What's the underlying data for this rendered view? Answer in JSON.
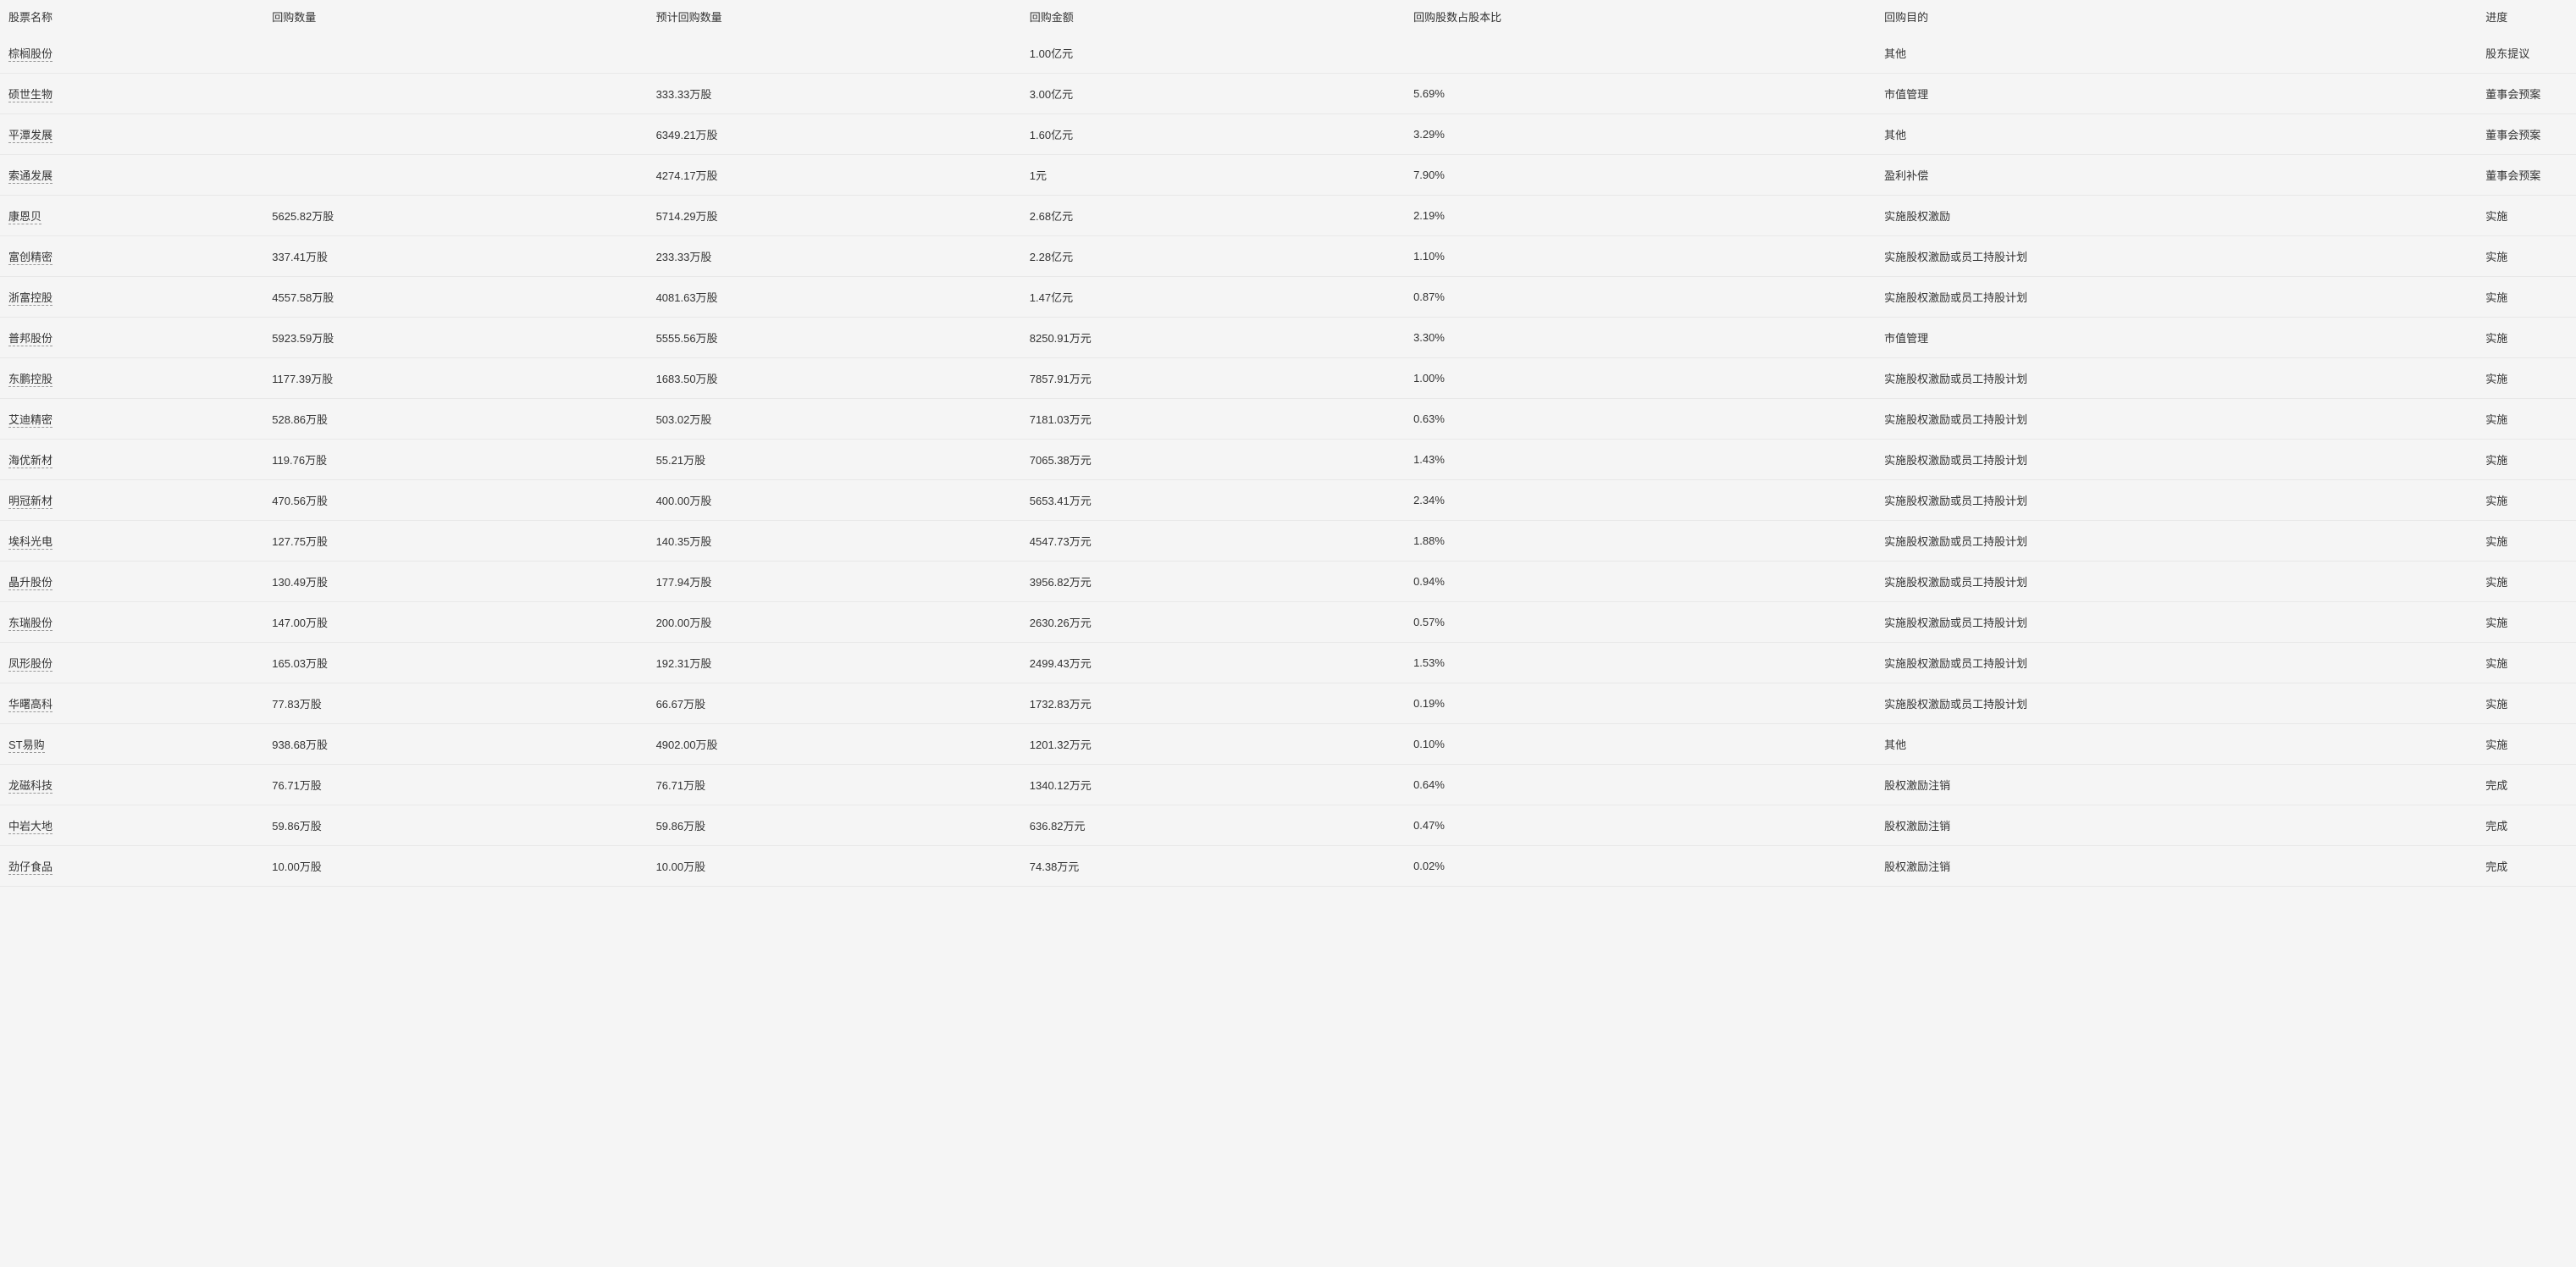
{
  "table": {
    "columns": [
      "股票名称",
      "回购数量",
      "预计回购数量",
      "回购金额",
      "回购股数占股本比",
      "回购目的",
      "进度"
    ],
    "rows": [
      {
        "name": "棕榈股份",
        "qty": "",
        "est_qty": "",
        "amount": "1.00亿元",
        "ratio": "",
        "purpose": "其他",
        "progress": "股东提议"
      },
      {
        "name": "硕世生物",
        "qty": "",
        "est_qty": "333.33万股",
        "amount": "3.00亿元",
        "ratio": "5.69%",
        "purpose": "市值管理",
        "progress": "董事会预案"
      },
      {
        "name": "平潭发展",
        "qty": "",
        "est_qty": "6349.21万股",
        "amount": "1.60亿元",
        "ratio": "3.29%",
        "purpose": "其他",
        "progress": "董事会预案"
      },
      {
        "name": "索通发展",
        "qty": "",
        "est_qty": "4274.17万股",
        "amount": "1元",
        "ratio": "7.90%",
        "purpose": "盈利补偿",
        "progress": "董事会预案"
      },
      {
        "name": "康恩贝",
        "qty": "5625.82万股",
        "est_qty": "5714.29万股",
        "amount": "2.68亿元",
        "ratio": "2.19%",
        "purpose": "实施股权激励",
        "progress": "实施"
      },
      {
        "name": "富创精密",
        "qty": "337.41万股",
        "est_qty": "233.33万股",
        "amount": "2.28亿元",
        "ratio": "1.10%",
        "purpose": "实施股权激励或员工持股计划",
        "progress": "实施"
      },
      {
        "name": "浙富控股",
        "qty": "4557.58万股",
        "est_qty": "4081.63万股",
        "amount": "1.47亿元",
        "ratio": "0.87%",
        "purpose": "实施股权激励或员工持股计划",
        "progress": "实施"
      },
      {
        "name": "普邦股份",
        "qty": "5923.59万股",
        "est_qty": "5555.56万股",
        "amount": "8250.91万元",
        "ratio": "3.30%",
        "purpose": "市值管理",
        "progress": "实施"
      },
      {
        "name": "东鹏控股",
        "qty": "1177.39万股",
        "est_qty": "1683.50万股",
        "amount": "7857.91万元",
        "ratio": "1.00%",
        "purpose": "实施股权激励或员工持股计划",
        "progress": "实施"
      },
      {
        "name": "艾迪精密",
        "qty": "528.86万股",
        "est_qty": "503.02万股",
        "amount": "7181.03万元",
        "ratio": "0.63%",
        "purpose": "实施股权激励或员工持股计划",
        "progress": "实施"
      },
      {
        "name": "海优新材",
        "qty": "119.76万股",
        "est_qty": "55.21万股",
        "amount": "7065.38万元",
        "ratio": "1.43%",
        "purpose": "实施股权激励或员工持股计划",
        "progress": "实施"
      },
      {
        "name": "明冠新材",
        "qty": "470.56万股",
        "est_qty": "400.00万股",
        "amount": "5653.41万元",
        "ratio": "2.34%",
        "purpose": "实施股权激励或员工持股计划",
        "progress": "实施"
      },
      {
        "name": "埃科光电",
        "qty": "127.75万股",
        "est_qty": "140.35万股",
        "amount": "4547.73万元",
        "ratio": "1.88%",
        "purpose": "实施股权激励或员工持股计划",
        "progress": "实施"
      },
      {
        "name": "晶升股份",
        "qty": "130.49万股",
        "est_qty": "177.94万股",
        "amount": "3956.82万元",
        "ratio": "0.94%",
        "purpose": "实施股权激励或员工持股计划",
        "progress": "实施"
      },
      {
        "name": "东瑞股份",
        "qty": "147.00万股",
        "est_qty": "200.00万股",
        "amount": "2630.26万元",
        "ratio": "0.57%",
        "purpose": "实施股权激励或员工持股计划",
        "progress": "实施"
      },
      {
        "name": "凤形股份",
        "qty": "165.03万股",
        "est_qty": "192.31万股",
        "amount": "2499.43万元",
        "ratio": "1.53%",
        "purpose": "实施股权激励或员工持股计划",
        "progress": "实施"
      },
      {
        "name": "华曙高科",
        "qty": "77.83万股",
        "est_qty": "66.67万股",
        "amount": "1732.83万元",
        "ratio": "0.19%",
        "purpose": "实施股权激励或员工持股计划",
        "progress": "实施"
      },
      {
        "name": "ST易购",
        "qty": "938.68万股",
        "est_qty": "4902.00万股",
        "amount": "1201.32万元",
        "ratio": "0.10%",
        "purpose": "其他",
        "progress": "实施"
      },
      {
        "name": "龙磁科技",
        "qty": "76.71万股",
        "est_qty": "76.71万股",
        "amount": "1340.12万元",
        "ratio": "0.64%",
        "purpose": "股权激励注销",
        "progress": "完成"
      },
      {
        "name": "中岩大地",
        "qty": "59.86万股",
        "est_qty": "59.86万股",
        "amount": "636.82万元",
        "ratio": "0.47%",
        "purpose": "股权激励注销",
        "progress": "完成"
      },
      {
        "name": "劲仔食品",
        "qty": "10.00万股",
        "est_qty": "10.00万股",
        "amount": "74.38万元",
        "ratio": "0.02%",
        "purpose": "股权激励注销",
        "progress": "完成"
      }
    ]
  },
  "style": {
    "background_color": "#f5f5f5",
    "border_color": "#e8e8e8",
    "text_color": "#333333",
    "link_underline_color": "#999999",
    "font_size": 13
  }
}
